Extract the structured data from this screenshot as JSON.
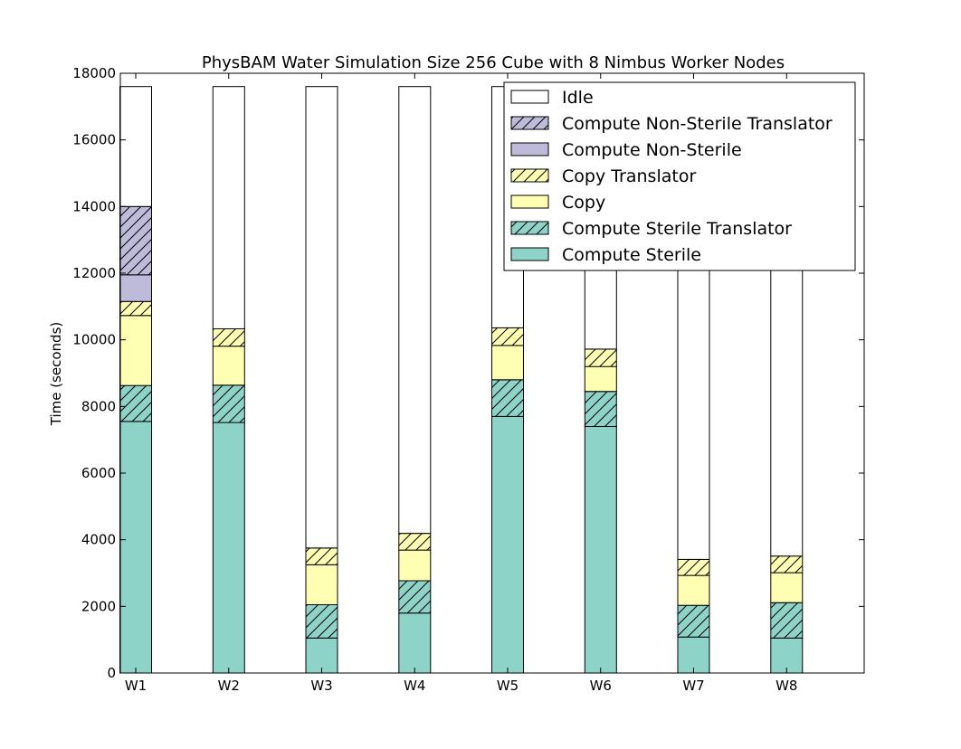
{
  "chart_data": {
    "type": "bar",
    "stacked": true,
    "title": "PhysBAM Water Simulation Size 256 Cube with 8 Nimbus Worker Nodes",
    "xlabel": "",
    "ylabel": "Time (seconds)",
    "ylim": [
      0,
      18000
    ],
    "yticks": [
      0,
      2000,
      4000,
      6000,
      8000,
      10000,
      12000,
      14000,
      16000,
      18000
    ],
    "categories": [
      "W1",
      "W2",
      "W3",
      "W4",
      "W5",
      "W6",
      "W7",
      "W8"
    ],
    "legend_position": "top-right",
    "grid": false,
    "series": [
      {
        "name": "Compute Sterile",
        "color": "#8dd3c7",
        "hatch": false,
        "values": [
          7550,
          7520,
          1050,
          1800,
          7700,
          7400,
          1080,
          1050
        ]
      },
      {
        "name": "Compute Sterile Translator",
        "color": "#8dd3c7",
        "hatch": true,
        "values": [
          1080,
          1120,
          1000,
          970,
          1100,
          1050,
          950,
          1060
        ]
      },
      {
        "name": "Copy",
        "color": "#ffffb3",
        "hatch": false,
        "values": [
          2100,
          1170,
          1200,
          920,
          1030,
          750,
          900,
          900
        ]
      },
      {
        "name": "Copy Translator",
        "color": "#ffffb3",
        "hatch": true,
        "values": [
          420,
          520,
          500,
          500,
          530,
          520,
          480,
          500
        ]
      },
      {
        "name": "Compute Non-Sterile",
        "color": "#bebada",
        "hatch": false,
        "values": [
          800,
          0,
          0,
          0,
          0,
          0,
          0,
          0
        ]
      },
      {
        "name": "Compute Non-Sterile Translator",
        "color": "#bebada",
        "hatch": true,
        "values": [
          2050,
          0,
          0,
          0,
          0,
          0,
          0,
          0
        ]
      },
      {
        "name": "Idle",
        "color": "#ffffff",
        "hatch": false,
        "values": [
          3600,
          7270,
          13850,
          13410,
          7240,
          7880,
          14190,
          14090
        ]
      }
    ]
  }
}
